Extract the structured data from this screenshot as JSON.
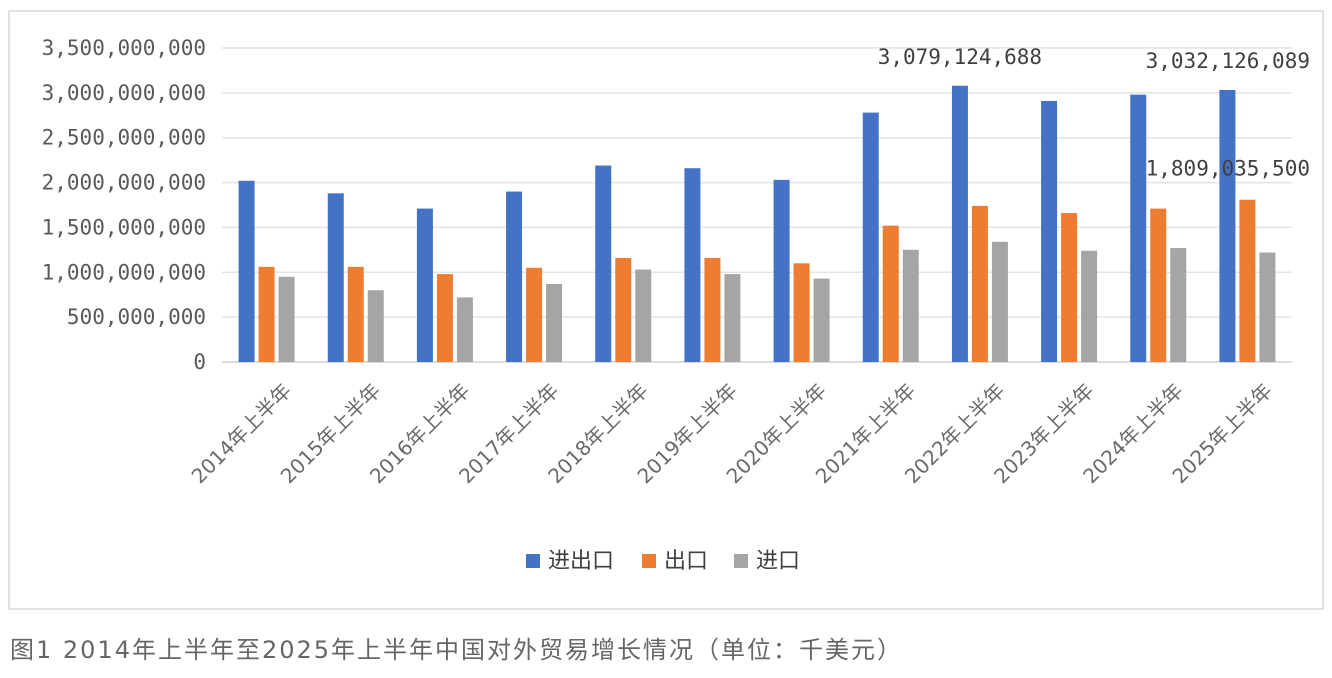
{
  "caption": "图1 2014年上半年至2025年上半年中国对外贸易增长情况（单位：千美元）",
  "chart_data": {
    "type": "bar",
    "categories": [
      "2014年上半年",
      "2015年上半年",
      "2016年上半年",
      "2017年上半年",
      "2018年上半年",
      "2019年上半年",
      "2020年上半年",
      "2021年上半年",
      "2022年上半年",
      "2023年上半年",
      "2024年上半年",
      "2025年上半年"
    ],
    "series": [
      {
        "name": "进出口",
        "color": "#4472c4",
        "values": [
          2020000000,
          1880000000,
          1710000000,
          1900000000,
          2190000000,
          2160000000,
          2030000000,
          2780000000,
          3079124688,
          2910000000,
          2980000000,
          3032126089
        ]
      },
      {
        "name": "出口",
        "color": "#ed7d31",
        "values": [
          1060000000,
          1060000000,
          980000000,
          1050000000,
          1160000000,
          1160000000,
          1100000000,
          1520000000,
          1740000000,
          1660000000,
          1710000000,
          1809035500
        ]
      },
      {
        "name": "进口",
        "color": "#a5a5a5",
        "values": [
          950000000,
          800000000,
          720000000,
          870000000,
          1030000000,
          980000000,
          930000000,
          1250000000,
          1340000000,
          1240000000,
          1270000000,
          1220000000
        ]
      }
    ],
    "ylim": [
      0,
      3500000000
    ],
    "yticks": [
      "0",
      "500,000,000",
      "1,000,000,000",
      "1,500,000,000",
      "2,000,000,000",
      "2,500,000,000",
      "3,000,000,000",
      "3,500,000,000"
    ],
    "grid": true,
    "legend_position": "bottom",
    "annotations": [
      {
        "text": "3,079,124,688",
        "category_index": 8,
        "series_index": 0
      },
      {
        "text": "3,032,126,089",
        "category_index": 11,
        "series_index": 0
      },
      {
        "text": "1,809,035,500",
        "category_index": 11,
        "series_index": 1
      }
    ]
  }
}
